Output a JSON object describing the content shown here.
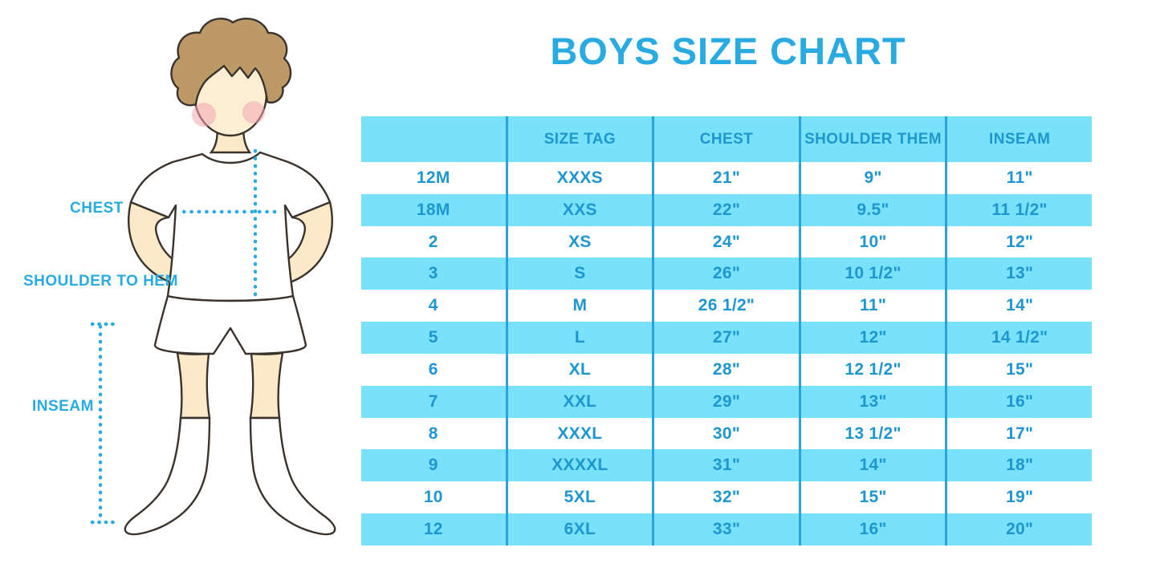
{
  "title": "BOYS SIZE CHART",
  "colors": {
    "accent": "#29ABE2",
    "band": "#79E2FA",
    "divider": "#2BA3D9",
    "table_text": "#1E96D0",
    "skin": "#FBE9C8",
    "hair": "#BE9968",
    "outline": "#3A332D",
    "cheek": "#F2A4B0"
  },
  "figure": {
    "labels": {
      "chest": "CHEST",
      "shoulder_to_hem": "SHOULDER TO HEM",
      "inseam": "INSEAM"
    }
  },
  "chart_data": {
    "type": "table",
    "title": "BOYS SIZE CHART",
    "columns": [
      "",
      "SIZE TAG",
      "CHEST",
      "SHOULDER THEM",
      "INSEAM"
    ],
    "rows": [
      [
        "12M",
        "XXXS",
        "21\"",
        "9\"",
        "11\""
      ],
      [
        "18M",
        "XXS",
        "22\"",
        "9.5\"",
        "11 1/2\""
      ],
      [
        "2",
        "XS",
        "24\"",
        "10\"",
        "12\""
      ],
      [
        "3",
        "S",
        "26\"",
        "10 1/2\"",
        "13\""
      ],
      [
        "4",
        "M",
        "26 1/2\"",
        "11\"",
        "14\""
      ],
      [
        "5",
        "L",
        "27\"",
        "12\"",
        "14 1/2\""
      ],
      [
        "6",
        "XL",
        "28\"",
        "12 1/2\"",
        "15\""
      ],
      [
        "7",
        "XXL",
        "29\"",
        "13\"",
        "16\""
      ],
      [
        "8",
        "XXXL",
        "30\"",
        "13 1/2\"",
        "17\""
      ],
      [
        "9",
        "XXXXL",
        "31\"",
        "14\"",
        "18\""
      ],
      [
        "10",
        "5XL",
        "32\"",
        "15\"",
        "19\""
      ],
      [
        "12",
        "6XL",
        "33\"",
        "16\"",
        "20\""
      ]
    ]
  }
}
